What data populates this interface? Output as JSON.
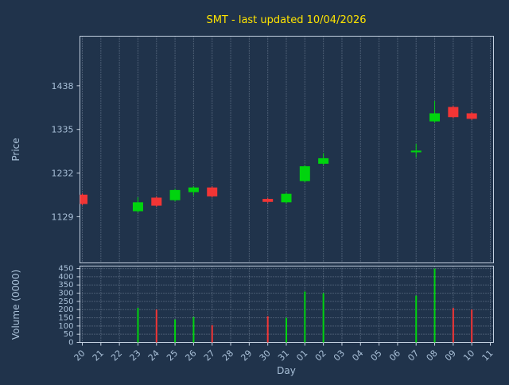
{
  "window": {
    "title": "SMT - last updated 10/04/2026"
  },
  "colors": {
    "background": "#20334b",
    "title_text": "#ffe400",
    "axis_text": "#a9c0d8",
    "panel_border": "#c3d0e0",
    "grid": "#97a6ba",
    "up": "#00d40e",
    "down": "#f23535"
  },
  "chart_data": [
    {
      "type": "candlestick",
      "title": "SMT - last updated 10/04/2026",
      "xlabel": "Day",
      "ylabel": "Price",
      "x_ticklabels": [
        "20",
        "21",
        "22",
        "23",
        "24",
        "25",
        "26",
        "27",
        "28",
        "29",
        "30",
        "31",
        "01",
        "02",
        "03",
        "04",
        "05",
        "06",
        "07",
        "08",
        "09",
        "10",
        "11"
      ],
      "yticks": [
        1129,
        1232,
        1335,
        1438
      ],
      "ylim": [
        1020,
        1555
      ],
      "grid": "vertical-dotted",
      "legend": "none",
      "candles": [
        {
          "day": "20",
          "open": 1181,
          "high": 1184,
          "low": 1156,
          "close": 1159
        },
        {
          "day": "23",
          "open": 1142,
          "high": 1175,
          "low": 1139,
          "close": 1163
        },
        {
          "day": "24",
          "open": 1174,
          "high": 1177,
          "low": 1152,
          "close": 1155
        },
        {
          "day": "25",
          "open": 1168,
          "high": 1195,
          "low": 1165,
          "close": 1192
        },
        {
          "day": "26",
          "open": 1187,
          "high": 1201,
          "low": 1179,
          "close": 1198
        },
        {
          "day": "27",
          "open": 1198,
          "high": 1201,
          "low": 1174,
          "close": 1177
        },
        {
          "day": "30",
          "open": 1171,
          "high": 1174,
          "low": 1161,
          "close": 1164
        },
        {
          "day": "31",
          "open": 1163,
          "high": 1186,
          "low": 1160,
          "close": 1183
        },
        {
          "day": "01",
          "open": 1213,
          "high": 1251,
          "low": 1210,
          "close": 1248
        },
        {
          "day": "02",
          "open": 1254,
          "high": 1279,
          "low": 1251,
          "close": 1267
        },
        {
          "day": "07",
          "open": 1281,
          "high": 1301,
          "low": 1269,
          "close": 1285
        },
        {
          "day": "08",
          "open": 1354,
          "high": 1402,
          "low": 1351,
          "close": 1373
        },
        {
          "day": "09",
          "open": 1388,
          "high": 1391,
          "low": 1361,
          "close": 1364
        },
        {
          "day": "10",
          "open": 1373,
          "high": 1376,
          "low": 1357,
          "close": 1360
        }
      ]
    },
    {
      "type": "bar",
      "ylabel": "Volume (0000)",
      "yticks": [
        0,
        50,
        100,
        150,
        200,
        250,
        300,
        350,
        400,
        450
      ],
      "ylim": [
        0,
        465
      ],
      "grid": "both-dotted",
      "bars": [
        {
          "day": "23",
          "value": 210,
          "dir": "up"
        },
        {
          "day": "24",
          "value": 200,
          "dir": "down"
        },
        {
          "day": "25",
          "value": 140,
          "dir": "up"
        },
        {
          "day": "26",
          "value": 155,
          "dir": "up"
        },
        {
          "day": "27",
          "value": 105,
          "dir": "down"
        },
        {
          "day": "30",
          "value": 160,
          "dir": "down"
        },
        {
          "day": "31",
          "value": 150,
          "dir": "up"
        },
        {
          "day": "01",
          "value": 310,
          "dir": "up"
        },
        {
          "day": "02",
          "value": 300,
          "dir": "up"
        },
        {
          "day": "07",
          "value": 285,
          "dir": "up"
        },
        {
          "day": "08",
          "value": 450,
          "dir": "up"
        },
        {
          "day": "09",
          "value": 210,
          "dir": "down"
        },
        {
          "day": "10",
          "value": 200,
          "dir": "down"
        }
      ]
    }
  ]
}
